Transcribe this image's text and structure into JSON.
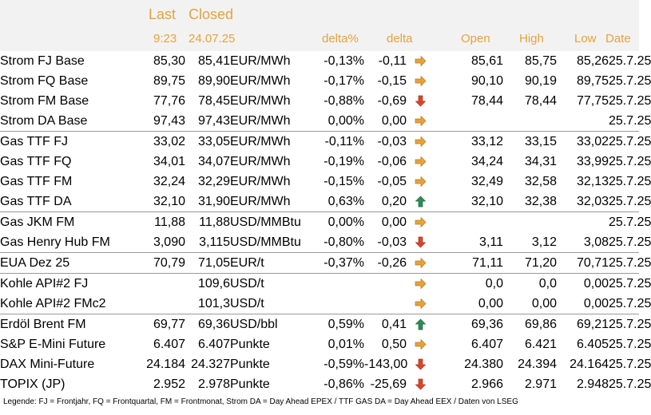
{
  "header": {
    "last_label": "Last",
    "closed_label": "Closed",
    "last_time": "9:23",
    "closed_date": "24.07.25",
    "delta_pct_label": "delta%",
    "delta_label": "delta",
    "open_label": "Open",
    "high_label": "High",
    "low_label": "Low",
    "date_label": "Date"
  },
  "colors": {
    "header_text": "#e8a23a",
    "header_bg": "#f2f2f2",
    "arrow_up": "#2e8b57",
    "arrow_down": "#d9462b",
    "arrow_right": "#e8a23a"
  },
  "rows": [
    {
      "name": "Strom FJ Base",
      "last": "85,30",
      "closed": "85,41",
      "unit": "EUR/MWh",
      "delta_pct": "-0,13%",
      "delta": "-0,11",
      "trend": "right",
      "open": "85,61",
      "high": "85,75",
      "low": "85,26",
      "date": "25.7.25",
      "separator": false
    },
    {
      "name": "Strom FQ Base",
      "last": "89,75",
      "closed": "89,90",
      "unit": "EUR/MWh",
      "delta_pct": "-0,17%",
      "delta": "-0,15",
      "trend": "right",
      "open": "90,10",
      "high": "90,19",
      "low": "89,75",
      "date": "25.7.25",
      "separator": false
    },
    {
      "name": "Strom FM Base",
      "last": "77,76",
      "closed": "78,45",
      "unit": "EUR/MWh",
      "delta_pct": "-0,88%",
      "delta": "-0,69",
      "trend": "down",
      "open": "78,44",
      "high": "78,44",
      "low": "77,75",
      "date": "25.7.25",
      "separator": false
    },
    {
      "name": "Strom DA Base",
      "last": "97,43",
      "closed": "97,43",
      "unit": "EUR/MWh",
      "delta_pct": "0,00%",
      "delta": "0,00",
      "trend": "right",
      "open": "",
      "high": "",
      "low": "",
      "date": "25.7.25",
      "separator": false
    },
    {
      "name": "Gas TTF FJ",
      "last": "33,02",
      "closed": "33,05",
      "unit": "EUR/MWh",
      "delta_pct": "-0,11%",
      "delta": "-0,03",
      "trend": "right",
      "open": "33,12",
      "high": "33,15",
      "low": "33,02",
      "date": "25.7.25",
      "separator": true
    },
    {
      "name": "Gas TTF FQ",
      "last": "34,01",
      "closed": "34,07",
      "unit": "EUR/MWh",
      "delta_pct": "-0,19%",
      "delta": "-0,06",
      "trend": "right",
      "open": "34,24",
      "high": "34,31",
      "low": "33,99",
      "date": "25.7.25",
      "separator": false
    },
    {
      "name": "Gas TTF FM",
      "last": "32,24",
      "closed": "32,29",
      "unit": "EUR/MWh",
      "delta_pct": "-0,15%",
      "delta": "-0,05",
      "trend": "right",
      "open": "32,49",
      "high": "32,58",
      "low": "32,13",
      "date": "25.7.25",
      "separator": false
    },
    {
      "name": "Gas TTF DA",
      "last": "32,10",
      "closed": "31,90",
      "unit": "EUR/MWh",
      "delta_pct": "0,63%",
      "delta": "0,20",
      "trend": "up",
      "open": "32,10",
      "high": "32,38",
      "low": "32,03",
      "date": "25.7.25",
      "separator": false
    },
    {
      "name": "Gas JKM FM",
      "last": "11,88",
      "closed": "11,88",
      "unit": "USD/MMBtu",
      "delta_pct": "0,00%",
      "delta": "0,00",
      "trend": "right",
      "open": "",
      "high": "",
      "low": "",
      "date": "25.7.25",
      "separator": true
    },
    {
      "name": "Gas Henry Hub FM",
      "last": "3,090",
      "closed": "3,115",
      "unit": "USD/MMBtu",
      "delta_pct": "-0,80%",
      "delta": "-0,03",
      "trend": "down",
      "open": "3,11",
      "high": "3,12",
      "low": "3,08",
      "date": "25.7.25",
      "separator": false
    },
    {
      "name": "EUA Dez 25",
      "last": "70,79",
      "closed": "71,05",
      "unit": "EUR/t",
      "delta_pct": "-0,37%",
      "delta": "-0,26",
      "trend": "right",
      "open": "71,11",
      "high": "71,20",
      "low": "70,71",
      "date": "25.7.25",
      "separator": true
    },
    {
      "name": "Kohle API#2 FJ",
      "last": "",
      "closed": "109,6",
      "unit": "USD/t",
      "delta_pct": "",
      "delta": "",
      "trend": "right",
      "open": "0,0",
      "high": "0,0",
      "low": "0,00",
      "date": "25.7.25",
      "separator": true
    },
    {
      "name": "Kohle API#2 FMc2",
      "last": "",
      "closed": "101,3",
      "unit": "USD/t",
      "delta_pct": "",
      "delta": "",
      "trend": "right",
      "open": "0,00",
      "high": "0,00",
      "low": "0,00",
      "date": "25.7.25",
      "separator": false
    },
    {
      "name": "Erdöl Brent FM",
      "last": "69,77",
      "closed": "69,36",
      "unit": "USD/bbl",
      "delta_pct": "0,59%",
      "delta": "0,41",
      "trend": "up",
      "open": "69,36",
      "high": "69,86",
      "low": "69,21",
      "date": "25.7.25",
      "separator": true
    },
    {
      "name": "S&P E-Mini Future",
      "last": "6.407",
      "closed": "6.407",
      "unit": "Punkte",
      "delta_pct": "0,01%",
      "delta": "0,50",
      "trend": "right",
      "open": "6.407",
      "high": "6.421",
      "low": "6.405",
      "date": "25.7.25",
      "separator": false
    },
    {
      "name": "DAX Mini-Future",
      "last": "24.184",
      "closed": "24.327",
      "unit": "Punkte",
      "delta_pct": "-0,59%",
      "delta": "-143,00",
      "trend": "down",
      "open": "24.380",
      "high": "24.394",
      "low": "24.164",
      "date": "25.7.25",
      "separator": false
    },
    {
      "name": "TOPIX (JP)",
      "last": "2.952",
      "closed": "2.978",
      "unit": "Punkte",
      "delta_pct": "-0,86%",
      "delta": "-25,69",
      "trend": "down",
      "open": "2.966",
      "high": "2.971",
      "low": "2.948",
      "date": "25.7.25",
      "separator": false
    }
  ],
  "legend": "Legende: FJ = Frontjahr, FQ = Frontquartal, FM = Frontmonat, Strom DA = Day Ahead EPEX / TTF GAS DA = Day Ahead EEX / Daten von LSEG"
}
